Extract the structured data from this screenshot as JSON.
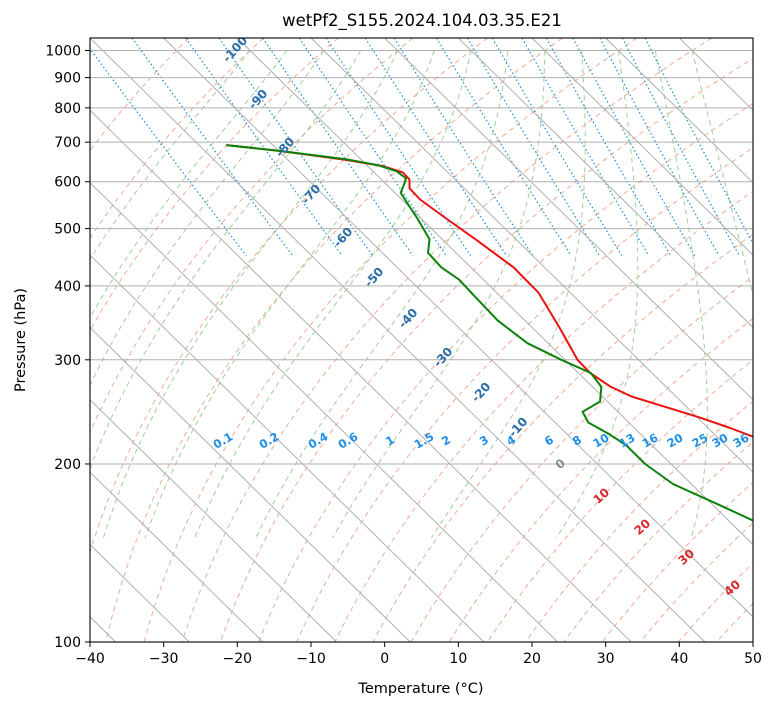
{
  "chart_data": {
    "type": "skew-t",
    "title": "wetPf2_S155.2024.104.03.35.E21",
    "xlabel": "Temperature (°C)",
    "ylabel": "Pressure (hPa)",
    "xlim": [
      -40,
      50
    ],
    "ylim": [
      1050,
      100
    ],
    "y_scale": "log",
    "grid": true,
    "x_ticks": [
      "−40",
      "−30",
      "−20",
      "−10",
      "0",
      "10",
      "20",
      "30",
      "40",
      "50"
    ],
    "y_ticks": [
      "100",
      "200",
      "300",
      "400",
      "500",
      "600",
      "700",
      "800",
      "900",
      "1000"
    ],
    "colors": {
      "temperature": "#e8120d",
      "dewpoint": "#0a820a",
      "isotherm_label": "#2b6ea8",
      "mixing_ratio": "#1e8ee6",
      "dry_adiabat": "#f4ab95",
      "moist_adiabat": "#9dd09c",
      "grid": "#b0b0b0"
    },
    "isotherm_labels": [
      "-100",
      "-90",
      "-80",
      "-70",
      "-60",
      "-50",
      "-40",
      "-30",
      "-20",
      "-10"
    ],
    "mixing_ratio_labels": [
      "0.1",
      "0.2",
      "0.4",
      "0.6",
      "1",
      "1.5",
      "2",
      "3",
      "4",
      "6",
      "8",
      "10",
      "13",
      "16",
      "20",
      "25",
      "30",
      "36"
    ],
    "theta_e_labels": [
      "0",
      "10",
      "20",
      "30",
      "40"
    ],
    "series": [
      {
        "role": "temperature",
        "points": [
          {
            "p": 692,
            "t": -36.3
          },
          {
            "p": 677,
            "t": -30
          },
          {
            "p": 653,
            "t": -22
          },
          {
            "p": 638,
            "t": -18
          },
          {
            "p": 622,
            "t": -16.1
          },
          {
            "p": 605,
            "t": -16.2
          },
          {
            "p": 585,
            "t": -17.4
          },
          {
            "p": 560,
            "t": -17.5
          },
          {
            "p": 520,
            "t": -16.6
          },
          {
            "p": 480,
            "t": -15.5
          },
          {
            "p": 430,
            "t": -14.2
          },
          {
            "p": 390,
            "t": -14.3
          },
          {
            "p": 340,
            "t": -16.3
          },
          {
            "p": 300,
            "t": -18.3
          },
          {
            "p": 285,
            "t": -18.4
          },
          {
            "p": 270,
            "t": -17.5
          },
          {
            "p": 260,
            "t": -16
          },
          {
            "p": 250,
            "t": -13
          },
          {
            "p": 240,
            "t": -9.8
          },
          {
            "p": 230,
            "t": -7
          },
          {
            "p": 220,
            "t": -4.5
          },
          {
            "p": 200,
            "t": -0.3
          },
          {
            "p": 185,
            "t": 3.5
          },
          {
            "p": 170,
            "t": 5.5
          },
          {
            "p": 150,
            "t": 8.6
          },
          {
            "p": 130,
            "t": 12.8
          },
          {
            "p": 115,
            "t": 16.2
          },
          {
            "p": 100,
            "t": 19
          }
        ]
      },
      {
        "role": "dewpoint",
        "points": [
          {
            "p": 692,
            "t": -36.3
          },
          {
            "p": 677,
            "t": -30
          },
          {
            "p": 655,
            "t": -22
          },
          {
            "p": 640,
            "t": -18.5
          },
          {
            "p": 625,
            "t": -16.8
          },
          {
            "p": 608,
            "t": -16.5
          },
          {
            "p": 595,
            "t": -17.5
          },
          {
            "p": 575,
            "t": -19.2
          },
          {
            "p": 550,
            "t": -19.8
          },
          {
            "p": 520,
            "t": -20.5
          },
          {
            "p": 480,
            "t": -21.7
          },
          {
            "p": 455,
            "t": -23.8
          },
          {
            "p": 430,
            "t": -24
          },
          {
            "p": 410,
            "t": -23.3
          },
          {
            "p": 380,
            "t": -23.5
          },
          {
            "p": 350,
            "t": -23.7
          },
          {
            "p": 320,
            "t": -22.8
          },
          {
            "p": 300,
            "t": -20.5
          },
          {
            "p": 285,
            "t": -18.3
          },
          {
            "p": 270,
            "t": -18.8
          },
          {
            "p": 255,
            "t": -21
          },
          {
            "p": 245,
            "t": -24.8
          },
          {
            "p": 235,
            "t": -25.5
          },
          {
            "p": 225,
            "t": -24.3
          },
          {
            "p": 215,
            "t": -23.5
          },
          {
            "p": 200,
            "t": -23.5
          },
          {
            "p": 185,
            "t": -22.5
          },
          {
            "p": 170,
            "t": -19
          },
          {
            "p": 150,
            "t": -14
          },
          {
            "p": 130,
            "t": -9
          },
          {
            "p": 115,
            "t": -4.5
          },
          {
            "p": 100,
            "t": 0
          }
        ]
      }
    ]
  }
}
